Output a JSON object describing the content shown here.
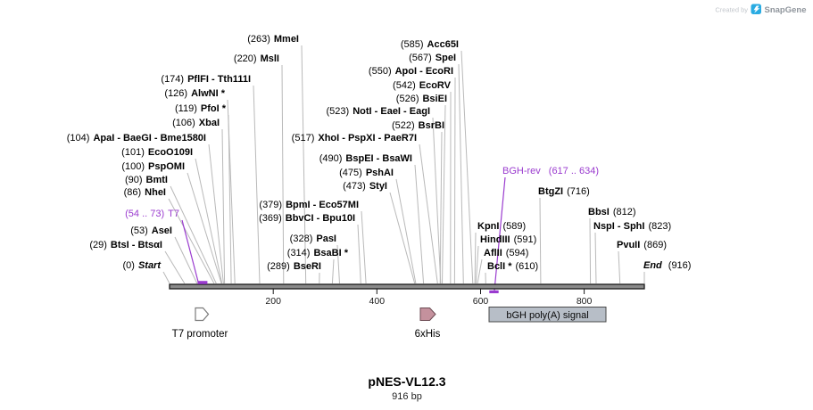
{
  "watermark": {
    "created_by": "Created by",
    "brand": "SnapGene"
  },
  "plasmid": {
    "name": "pNES-VL12.3",
    "length": "916 bp"
  },
  "ruler": {
    "ticks": [
      "200",
      "400",
      "600",
      "800"
    ]
  },
  "ends": {
    "start_pos": "(0)",
    "start_label": "Start",
    "end_label": "End",
    "end_pos": "(916)"
  },
  "promoter_label": {
    "range": "(54 .. 73)",
    "name": "T7"
  },
  "primer_label": {
    "name": "BGH-rev",
    "range": "(617 .. 634)"
  },
  "features": {
    "t7": "T7 promoter",
    "his": "6xHis",
    "bgh": "bGH poly(A) signal"
  },
  "colors": {
    "purple": "#9a3bcf",
    "line": "#b9b9b9",
    "his": "#c4919d",
    "bgh": "#b7bec7",
    "brand": "#29abe2"
  },
  "sites": [
    {
      "pos": "(263)",
      "name": "MmeI"
    },
    {
      "pos": "(220)",
      "name": "MslI"
    },
    {
      "pos": "(174)",
      "name": "PflFI - Tth111I"
    },
    {
      "pos": "(126)",
      "name": "AlwNI *"
    },
    {
      "pos": "(119)",
      "name": "PfoI *"
    },
    {
      "pos": "(106)",
      "name": "XbaI"
    },
    {
      "pos": "(104)",
      "name": "ApaI - BaeGI - Bme1580I"
    },
    {
      "pos": "(101)",
      "name": "EcoO109I"
    },
    {
      "pos": "(100)",
      "name": "PspOMI"
    },
    {
      "pos": "(90)",
      "name": "BmtI"
    },
    {
      "pos": "(86)",
      "name": "NheI"
    },
    {
      "pos": "(53)",
      "name": "AseI"
    },
    {
      "pos": "(29)",
      "name": "BtsI - BtsαI"
    },
    {
      "pos": "(523)",
      "name": "NotI - EaeI - EagI"
    },
    {
      "pos": "(517)",
      "name": "XhoI - PspXI - PaeR7I"
    },
    {
      "pos": "(490)",
      "name": "BspEI - BsaWI"
    },
    {
      "pos": "(475)",
      "name": "PshAI"
    },
    {
      "pos": "(473)",
      "name": "StyI"
    },
    {
      "pos": "(379)",
      "name": "BpmI - Eco57MI"
    },
    {
      "pos": "(369)",
      "name": "BbvCI - Bpu10I"
    },
    {
      "pos": "(328)",
      "name": "PasI"
    },
    {
      "pos": "(314)",
      "name": "BsaBI *"
    },
    {
      "pos": "(289)",
      "name": "BseRI"
    },
    {
      "pos": "(585)",
      "name": "Acc65I"
    },
    {
      "pos": "(567)",
      "name": "SpeI"
    },
    {
      "pos": "(550)",
      "name": "ApoI - EcoRI"
    },
    {
      "pos": "(542)",
      "name": "EcoRV"
    },
    {
      "pos": "(526)",
      "name": "BsiEI"
    },
    {
      "pos": "(522)",
      "name": "BsrBI"
    },
    {
      "pos": "(589)",
      "name": "KpnI"
    },
    {
      "pos": "(591)",
      "name": "HindIII"
    },
    {
      "pos": "(594)",
      "name": "AflII"
    },
    {
      "pos": "(610)",
      "name": "BclI *"
    },
    {
      "pos": "(716)",
      "name": "BtgZI"
    },
    {
      "pos": "(812)",
      "name": "BbsI"
    },
    {
      "pos": "(823)",
      "name": "NspI - SphI"
    },
    {
      "pos": "(869)",
      "name": "PvuII"
    }
  ]
}
